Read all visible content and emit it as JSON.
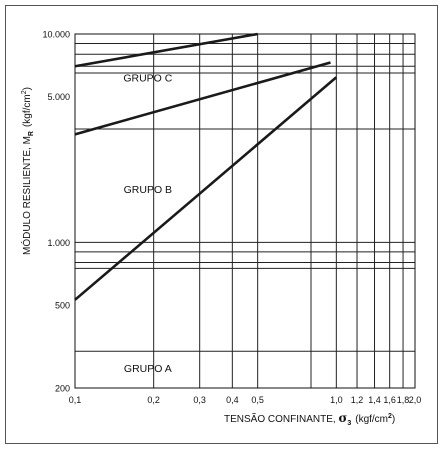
{
  "chart_data": {
    "type": "line",
    "x_scale": "log",
    "y_scale": "log",
    "xlim": [
      0.1,
      2.0
    ],
    "ylim": [
      200,
      10000
    ],
    "x_ticks": [
      {
        "value": 0.1,
        "label": "0,1"
      },
      {
        "value": 0.2,
        "label": "0,2"
      },
      {
        "value": 0.3,
        "label": "0,3"
      },
      {
        "value": 0.4,
        "label": "0,4"
      },
      {
        "value": 0.5,
        "label": "0,5"
      },
      {
        "value": 1.0,
        "label": "1,0"
      },
      {
        "value": 1.2,
        "label": "1,2"
      },
      {
        "value": 1.4,
        "label": "1,4"
      },
      {
        "value": 1.6,
        "label": "1,6"
      },
      {
        "value": 1.8,
        "label": "1,8"
      },
      {
        "value": 2.0,
        "label": "2,0"
      }
    ],
    "y_ticks": [
      {
        "value": 200,
        "label": "200"
      },
      {
        "value": 500,
        "label": "500"
      },
      {
        "value": 1000,
        "label": "1.000"
      },
      {
        "value": 5000,
        "label": "5.000"
      },
      {
        "value": 10000,
        "label": "10.000"
      }
    ],
    "x_gridlines": [
      0.1,
      0.2,
      0.3,
      0.4,
      0.5,
      0.8,
      1.0,
      1.2,
      1.4,
      1.6,
      1.8,
      2.0
    ],
    "y_gridlines": [
      200,
      300,
      750,
      800,
      900,
      1000,
      3500,
      6500,
      7000,
      8000,
      9000,
      10000
    ],
    "xlabel": "TENSÃO CONFINANTE,",
    "xlabel_symbol": "σ",
    "xlabel_sub": "3",
    "xlabel_unit": "(kgf/cm",
    "xlabel_unit_sup": "2",
    "xlabel_unit_close": ")",
    "ylabel": "MÓDULO RESILIENTE, M",
    "ylabel_sub": "R",
    "ylabel_unit": "(kgf/cm",
    "ylabel_unit_sup": "2",
    "ylabel_unit_close": ")",
    "grid": true,
    "series": [
      {
        "x": [
          0.1,
          0.5
        ],
        "y": [
          7000,
          10000
        ],
        "color": "#1a1a1a"
      },
      {
        "x": [
          0.1,
          0.95
        ],
        "y": [
          3300,
          7300
        ],
        "color": "#1a1a1a"
      },
      {
        "x": [
          0.1,
          1.0
        ],
        "y": [
          530,
          6200
        ],
        "color": "#1a1a1a"
      }
    ],
    "annotations": [
      {
        "text": "GRUPO C",
        "x": 0.19,
        "y": 6200
      },
      {
        "text": "GRUPO B",
        "x": 0.19,
        "y": 1800
      },
      {
        "text": "GRUPO A",
        "x": 0.19,
        "y": 250
      }
    ]
  }
}
